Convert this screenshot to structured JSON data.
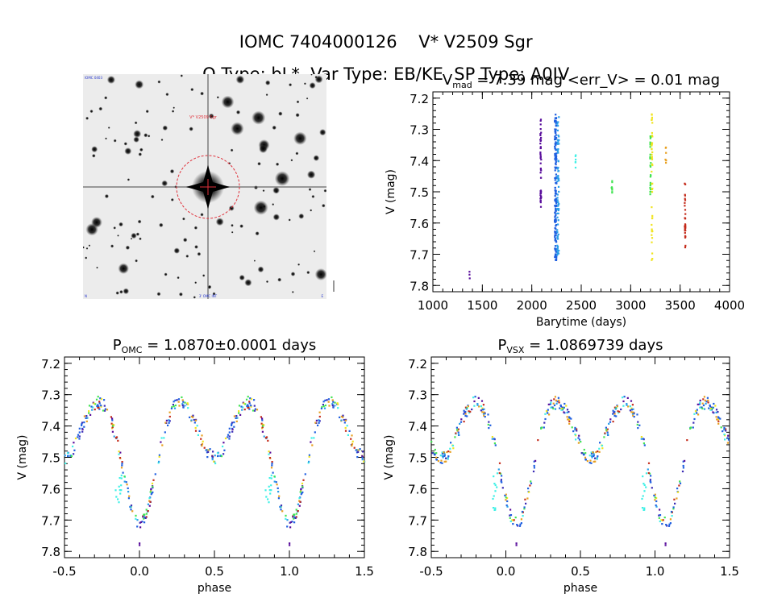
{
  "header": {
    "title_id": "IOMC 7404000126",
    "title_name": "V* V2509 Sgr",
    "otype_label": "O Type: bL*",
    "vartype_label": "Var Type: EB/KE",
    "sptype_label": "SP Type: A0IV"
  },
  "image_panel": {
    "corner_tl": "IOMC 0403",
    "marker_label": "V* V2509 Sgr",
    "corner_bl": "N",
    "corner_bc": "3' OMC INT",
    "corner_br": "E"
  },
  "colors": {
    "purple": "#5a0f9c",
    "indigo": "#3b2bb5",
    "blue": "#1f5fe0",
    "skyblue": "#2a9fe8",
    "cyan": "#3ff0e6",
    "green": "#43e353",
    "yellow": "#f1e420",
    "orange": "#e8a020",
    "red": "#c42b1b",
    "circle": "#e0303a"
  },
  "chart_data": [
    {
      "id": "lightcurve",
      "type": "scatter",
      "title": "V_mad = 7.39 mag <err_V> = 0.01 mag",
      "title_parts": {
        "v": "V",
        "sub": "mad",
        "rest": "= 7.39 mag <err_V> = 0.01 mag"
      },
      "xlabel": "Barytime (days)",
      "ylabel": "V (mag)",
      "xlim": [
        1000,
        4000
      ],
      "ylim": [
        7.82,
        7.18
      ],
      "xticks": [
        1000,
        1500,
        2000,
        2500,
        3000,
        3500,
        4000
      ],
      "yticks": [
        7.2,
        7.3,
        7.4,
        7.5,
        7.6,
        7.7,
        7.8
      ],
      "segments": [
        {
          "color": "purple",
          "x": 1370,
          "ymin": 7.69,
          "ymax": 7.79,
          "n": 3
        },
        {
          "color": "purple",
          "x": 2090,
          "ymin": 7.26,
          "ymax": 7.55,
          "n": 45
        },
        {
          "color": "blue",
          "x": 2240,
          "ymin": 7.25,
          "ymax": 7.72,
          "n": 160
        },
        {
          "color": "skyblue",
          "x": 2265,
          "ymin": 7.26,
          "ymax": 7.71,
          "n": 70
        },
        {
          "color": "cyan",
          "x": 2445,
          "ymin": 7.36,
          "ymax": 7.43,
          "n": 6
        },
        {
          "color": "green",
          "x": 2810,
          "ymin": 7.46,
          "ymax": 7.51,
          "n": 9
        },
        {
          "color": "green",
          "x": 3200,
          "ymin": 7.3,
          "ymax": 7.52,
          "n": 30
        },
        {
          "color": "yellow",
          "x": 3215,
          "ymin": 7.25,
          "ymax": 7.72,
          "n": 45
        },
        {
          "color": "orange",
          "x": 3355,
          "ymin": 7.35,
          "ymax": 7.41,
          "n": 6
        },
        {
          "color": "red",
          "x": 3550,
          "ymin": 7.46,
          "ymax": 7.69,
          "n": 30
        }
      ]
    },
    {
      "id": "phase_omc",
      "type": "scatter",
      "title": "P_OMC = 1.0870±0.0001 days",
      "title_parts": {
        "v": "P",
        "sub": "OMC",
        "rest": "= 1.0870±0.0001 days"
      },
      "xlabel": "phase",
      "ylabel": "V (mag)",
      "xlim": [
        -0.5,
        1.5
      ],
      "ylim": [
        7.82,
        7.18
      ],
      "xticks": [
        -0.5,
        0.0,
        0.5,
        1.0,
        1.5
      ],
      "yticks": [
        7.2,
        7.3,
        7.4,
        7.5,
        7.6,
        7.7,
        7.8
      ],
      "phase_shift": 0.0
    },
    {
      "id": "phase_vsx",
      "type": "scatter",
      "title": "P_VSX = 1.0869739 days",
      "title_parts": {
        "v": "P",
        "sub": "VSX",
        "rest": "= 1.0869739 days"
      },
      "xlabel": "phase",
      "ylabel": "V (mag)",
      "xlim": [
        -0.5,
        1.5
      ],
      "ylim": [
        7.82,
        7.18
      ],
      "xticks": [
        -0.5,
        0.0,
        0.5,
        1.0,
        1.5
      ],
      "yticks": [
        7.2,
        7.3,
        7.4,
        7.5,
        7.6,
        7.7,
        7.8
      ],
      "phase_shift": 0.07
    }
  ],
  "phase_model": {
    "primary_min_phase": 0.0,
    "primary_min_mag": 7.71,
    "secondary_min_phase": 0.5,
    "secondary_min_mag": 7.5,
    "max_mag": 7.28,
    "outlier_mag": 7.78
  }
}
